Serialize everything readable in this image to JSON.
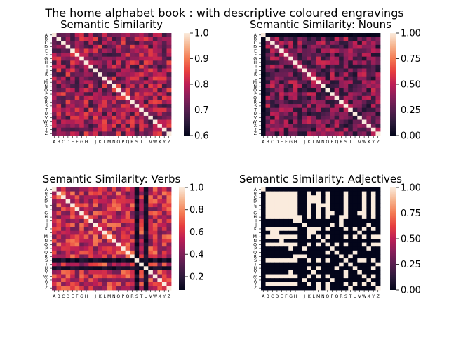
{
  "figure": {
    "suptitle": "The home alphabet book : with descriptive coloured engravings"
  },
  "chart_data": [
    {
      "type": "heatmap",
      "title": "Semantic Similarity",
      "x_labels": [
        "A",
        "B",
        "C",
        "D",
        "E",
        "F",
        "G",
        "H",
        "I",
        "J",
        "K",
        "L",
        "M",
        "N",
        "O",
        "P",
        "Q",
        "R",
        "S",
        "T",
        "U",
        "V",
        "W",
        "X",
        "Y",
        "Z"
      ],
      "y_labels": [
        "A",
        "B",
        "C",
        "D",
        "E",
        "F",
        "G",
        "H",
        "I",
        "J",
        "K",
        "L",
        "M",
        "N",
        "O",
        "P",
        "Q",
        "R",
        "S",
        "T",
        "U",
        "V",
        "W",
        "X",
        "Y",
        "Z"
      ],
      "colorbar": {
        "range": [
          0.6,
          1.0
        ],
        "ticks": [
          "0.6",
          "0.7",
          "0.8",
          "0.9",
          "1.0"
        ],
        "tick_values": [
          0.6,
          0.7,
          0.8,
          0.9,
          1.0
        ]
      },
      "colormap": "rocket",
      "diagonal": 1.0,
      "matrix_pattern": "symmetric; off-diagonal values mostly 0.72–0.85",
      "seed": 11,
      "lo": 0.66,
      "hi": 0.86,
      "dark_rows": [],
      "binary": false
    },
    {
      "type": "heatmap",
      "title": "Semantic Similarity: Nouns",
      "x_labels": [
        "A",
        "B",
        "C",
        "D",
        "E",
        "F",
        "G",
        "H",
        "I",
        "J",
        "K",
        "L",
        "M",
        "N",
        "O",
        "P",
        "Q",
        "R",
        "S",
        "T",
        "U",
        "V",
        "W",
        "X",
        "Y",
        "Z"
      ],
      "y_labels": [
        "A",
        "B",
        "C",
        "D",
        "E",
        "F",
        "G",
        "H",
        "I",
        "J",
        "K",
        "L",
        "M",
        "N",
        "O",
        "P",
        "Q",
        "R",
        "S",
        "T",
        "U",
        "V",
        "W",
        "X",
        "Y",
        "Z"
      ],
      "colorbar": {
        "range": [
          0.0,
          1.0
        ],
        "ticks": [
          "0.00",
          "0.25",
          "0.50",
          "0.75",
          "1.00"
        ],
        "tick_values": [
          0,
          0.25,
          0.5,
          0.75,
          1.0
        ]
      },
      "colormap": "rocket",
      "diagonal": 1.0,
      "matrix_pattern": "symmetric; off-diagonal values mostly 0.1–0.5",
      "seed": 23,
      "lo": 0.08,
      "hi": 0.55,
      "dark_rows": [
        0
      ],
      "binary": false
    },
    {
      "type": "heatmap",
      "title": "Semantic Similarity: Verbs",
      "x_labels": [
        "A",
        "B",
        "C",
        "D",
        "E",
        "F",
        "G",
        "H",
        "I",
        "J",
        "K",
        "L",
        "M",
        "N",
        "O",
        "P",
        "Q",
        "R",
        "S",
        "T",
        "U",
        "V",
        "W",
        "X",
        "Y",
        "Z"
      ],
      "y_labels": [
        "A",
        "B",
        "C",
        "D",
        "E",
        "F",
        "G",
        "H",
        "I",
        "J",
        "K",
        "L",
        "M",
        "N",
        "O",
        "P",
        "Q",
        "R",
        "S",
        "T",
        "U",
        "V",
        "W",
        "X",
        "Y",
        "Z"
      ],
      "colorbar": {
        "range": [
          0.08,
          1.0
        ],
        "ticks": [
          "0.2",
          "0.4",
          "0.6",
          "0.8",
          "1.0"
        ],
        "tick_values": [
          0.2,
          0.4,
          0.6,
          0.8,
          1.0
        ]
      },
      "colormap": "rocket",
      "diagonal": 1.0,
      "matrix_pattern": "symmetric; off-diagonal values mostly 0.4–0.75; rows/cols S and U near 0.1",
      "seed": 37,
      "lo": 0.35,
      "hi": 0.78,
      "dark_rows": [
        18,
        20
      ],
      "binary": false
    },
    {
      "type": "heatmap",
      "title": "Semantic Similarity: Adjectives",
      "x_labels": [
        "A",
        "B",
        "C",
        "D",
        "E",
        "F",
        "G",
        "H",
        "I",
        "J",
        "K",
        "L",
        "M",
        "N",
        "O",
        "P",
        "Q",
        "R",
        "S",
        "T",
        "U",
        "V",
        "W",
        "X",
        "Y",
        "Z"
      ],
      "y_labels": [
        "A",
        "B",
        "C",
        "D",
        "E",
        "F",
        "G",
        "H",
        "I",
        "J",
        "K",
        "L",
        "M",
        "N",
        "O",
        "P",
        "Q",
        "R",
        "S",
        "T",
        "U",
        "V",
        "W",
        "X",
        "Y",
        "Z"
      ],
      "colorbar": {
        "range": [
          0.0,
          1.0
        ],
        "ticks": [
          "0.00",
          "0.25",
          "0.50",
          "0.75",
          "1.00"
        ],
        "tick_values": [
          0,
          0.25,
          0.5,
          0.75,
          1.0
        ]
      },
      "colormap": "rocket",
      "diagonal": 1.0,
      "matrix_pattern": "symmetric; values essentially binary 0 or 1; letters B–H form a block of 1.0",
      "seed": 51,
      "lo": 0.0,
      "hi": 1.0,
      "dark_rows": [],
      "binary": true,
      "ones": [
        "B",
        "C",
        "D",
        "E",
        "F",
        "G",
        "H",
        "K",
        "M",
        "O",
        "S",
        "W",
        "Y"
      ]
    }
  ]
}
